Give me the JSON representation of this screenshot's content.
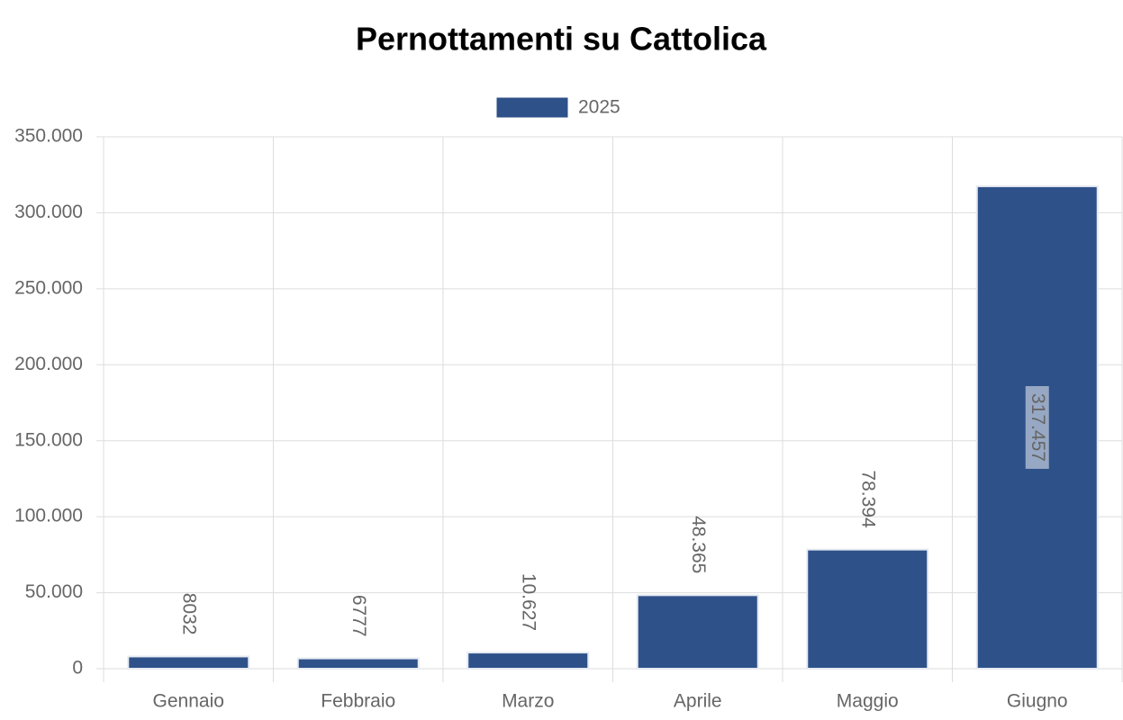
{
  "chart_data": {
    "type": "bar",
    "title": "Pernottamenti su Cattolica",
    "categories": [
      "Gennaio",
      "Febbraio",
      "Marzo",
      "Aprile",
      "Maggio",
      "Giugno"
    ],
    "series": [
      {
        "name": "2025",
        "color": "#2e5189",
        "values": [
          8032,
          6777,
          10627,
          48365,
          78394,
          317457
        ],
        "value_labels": [
          "8032",
          "6777",
          "10.627",
          "48.365",
          "78.394",
          "317.457"
        ]
      }
    ],
    "ylim": [
      0,
      350000
    ],
    "yticks": [
      0,
      {
        "value": 50000,
        "label": "50.000"
      },
      {
        "value": 100000,
        "label": "100.000"
      },
      {
        "value": 150000,
        "label": "150.000"
      },
      {
        "value": 200000,
        "label": "200.000"
      },
      {
        "value": 250000,
        "label": "250.000"
      },
      {
        "value": 300000,
        "label": "300.000"
      },
      {
        "value": 350000,
        "label": "350.000"
      }
    ],
    "grid": true,
    "legend": "top"
  }
}
